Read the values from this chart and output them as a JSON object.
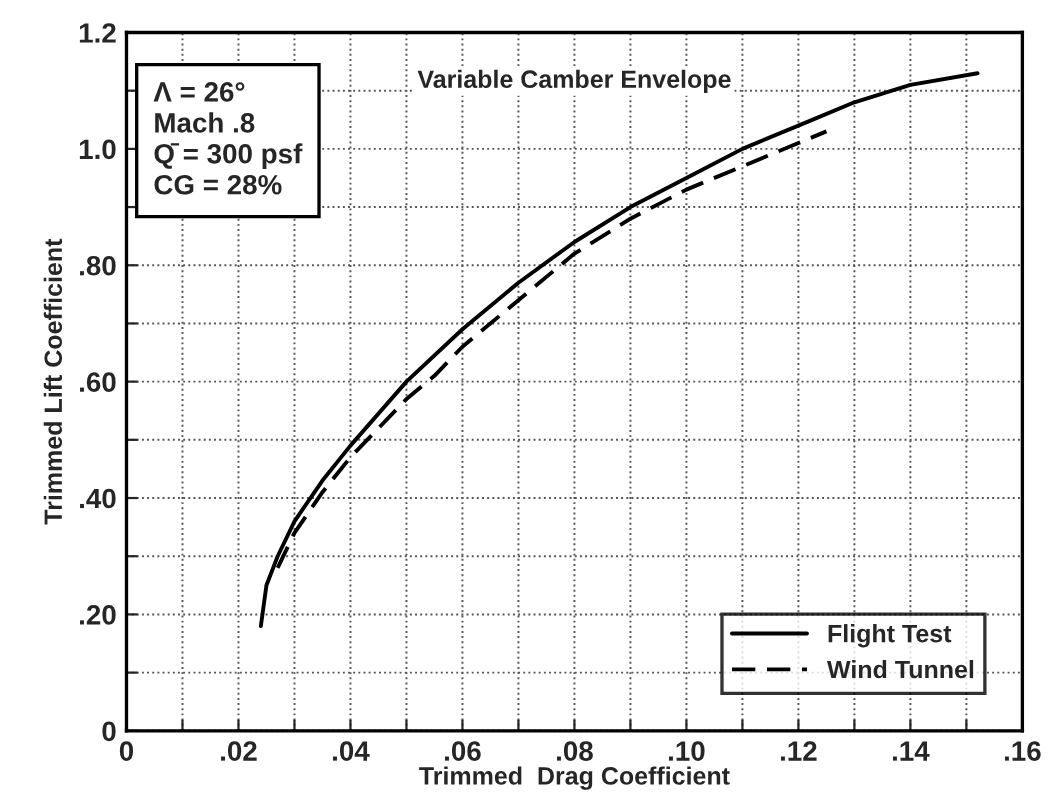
{
  "chart_data": {
    "type": "line",
    "title": "Variable Camber Envelope",
    "xlabel": "Trimmed  Drag Coefficient",
    "ylabel": "Trimmed Lift Coefficient",
    "annotations": [
      "Λ = 26°\nMach .8\nQ̄ = 300 psf\nCG = 28%"
    ],
    "series": [
      {
        "name": "Flight Test",
        "color": "#000000",
        "line_style": "solid",
        "x": [
          0.024,
          0.025,
          0.027,
          0.03,
          0.035,
          0.04,
          0.05,
          0.06,
          0.07,
          0.08,
          0.09,
          0.1,
          0.11,
          0.12,
          0.13,
          0.14,
          0.152
        ],
        "values": [
          0.18,
          0.25,
          0.3,
          0.36,
          0.43,
          0.49,
          0.6,
          0.69,
          0.77,
          0.84,
          0.9,
          0.95,
          1.0,
          1.04,
          1.08,
          1.11,
          1.13
        ]
      },
      {
        "name": "Wind Tunnel",
        "color": "#000000",
        "line_style": "dashed",
        "x": [
          0.027,
          0.03,
          0.035,
          0.04,
          0.045,
          0.05,
          0.055,
          0.06,
          0.07,
          0.08,
          0.09,
          0.1,
          0.11,
          0.12,
          0.125
        ],
        "values": [
          0.28,
          0.34,
          0.41,
          0.47,
          0.52,
          0.57,
          0.61,
          0.66,
          0.74,
          0.82,
          0.88,
          0.93,
          0.97,
          1.01,
          1.03
        ]
      }
    ],
    "xlim": [
      0,
      0.16
    ],
    "ylim": [
      0,
      1.2
    ],
    "xticks": [
      {
        "value": 0,
        "label": "0"
      },
      {
        "value": 0.01,
        "label": null
      },
      {
        "value": 0.02,
        "label": ".02"
      },
      {
        "value": 0.03,
        "label": null
      },
      {
        "value": 0.04,
        "label": ".04"
      },
      {
        "value": 0.05,
        "label": null
      },
      {
        "value": 0.06,
        "label": ".06"
      },
      {
        "value": 0.07,
        "label": null
      },
      {
        "value": 0.08,
        "label": ".08"
      },
      {
        "value": 0.09,
        "label": null
      },
      {
        "value": 0.1,
        "label": ".10"
      },
      {
        "value": 0.11,
        "label": null
      },
      {
        "value": 0.12,
        "label": ".12"
      },
      {
        "value": 0.13,
        "label": null
      },
      {
        "value": 0.14,
        "label": ".14"
      },
      {
        "value": 0.15,
        "label": null
      },
      {
        "value": 0.16,
        "label": ".16"
      }
    ],
    "yticks": [
      {
        "value": 0,
        "label": "0"
      },
      {
        "value": 0.1,
        "label": null
      },
      {
        "value": 0.2,
        "label": ".20"
      },
      {
        "value": 0.3,
        "label": null
      },
      {
        "value": 0.4,
        "label": ".40"
      },
      {
        "value": 0.5,
        "label": null
      },
      {
        "value": 0.6,
        "label": ".60"
      },
      {
        "value": 0.7,
        "label": null
      },
      {
        "value": 0.8,
        "label": ".80"
      },
      {
        "value": 0.9,
        "label": null
      },
      {
        "value": 1.0,
        "label": "1.0"
      },
      {
        "value": 1.1,
        "label": null
      },
      {
        "value": 1.2,
        "label": "1.2"
      }
    ],
    "grid": true,
    "legend": "bottom right",
    "marker": "none"
  }
}
